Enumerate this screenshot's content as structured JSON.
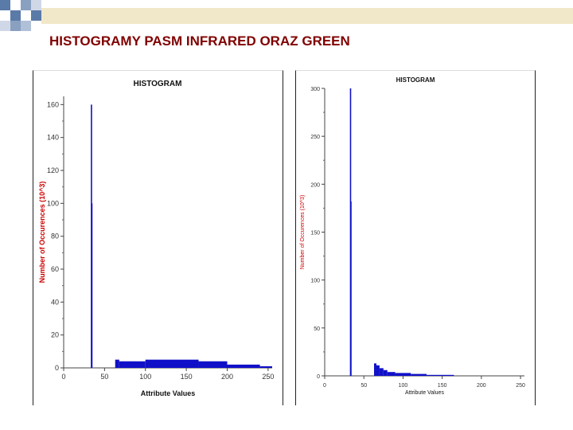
{
  "slide": {
    "title": "HISTOGRAMY PASM INFRARED ORAZ GREEN"
  },
  "colors": {
    "title": "#800000",
    "bars": "#1010c8",
    "axis_label": "#cc0000",
    "decor_top": "#f0e8c8",
    "decor_squares": "#5a7aa8"
  },
  "chart_data": [
    {
      "type": "bar",
      "title": "HISTOGRAM",
      "xlabel": "Attribute Values",
      "ylabel": "Number of Occurences (10^3)",
      "xlim": [
        0,
        255
      ],
      "ylim": [
        0,
        165
      ],
      "xticks": [
        "0",
        "50",
        "100",
        "150",
        "200",
        "250"
      ],
      "yticks": [
        "0",
        "20",
        "40",
        "60",
        "80",
        "100",
        "120",
        "140",
        "160"
      ],
      "spikes": [
        {
          "x": 34,
          "y": 160
        },
        {
          "x": 34.5,
          "y": 100
        }
      ],
      "segments": [
        {
          "x0": 63,
          "x1": 68,
          "y": 5
        },
        {
          "x0": 68,
          "x1": 100,
          "y": 4
        },
        {
          "x0": 100,
          "x1": 165,
          "y": 5
        },
        {
          "x0": 165,
          "x1": 200,
          "y": 4
        },
        {
          "x0": 200,
          "x1": 240,
          "y": 2
        },
        {
          "x0": 240,
          "x1": 255,
          "y": 1
        }
      ]
    },
    {
      "type": "bar",
      "title": "HISTOGRAM",
      "xlabel": "Attribute Values",
      "ylabel": "Number of Occurences (10^3)",
      "xlim": [
        0,
        255
      ],
      "ylim": [
        0,
        300
      ],
      "xticks": [
        "0",
        "50",
        "100",
        "150",
        "200",
        "250"
      ],
      "yticks": [
        "0",
        "50",
        "100",
        "150",
        "200",
        "250",
        "300"
      ],
      "spikes": [
        {
          "x": 33,
          "y": 300
        },
        {
          "x": 33.5,
          "y": 182
        }
      ],
      "segments": [
        {
          "x0": 63,
          "x1": 66,
          "y": 13
        },
        {
          "x0": 66,
          "x1": 70,
          "y": 11
        },
        {
          "x0": 70,
          "x1": 75,
          "y": 8
        },
        {
          "x0": 75,
          "x1": 80,
          "y": 6
        },
        {
          "x0": 80,
          "x1": 90,
          "y": 4
        },
        {
          "x0": 90,
          "x1": 110,
          "y": 3
        },
        {
          "x0": 110,
          "x1": 130,
          "y": 2
        },
        {
          "x0": 130,
          "x1": 165,
          "y": 1
        }
      ]
    }
  ]
}
